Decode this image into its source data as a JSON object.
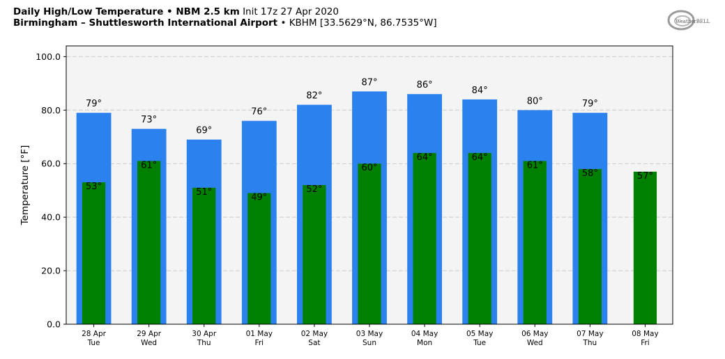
{
  "header": {
    "line1_bold": "Daily High/Low Temperature • NBM 2.5 km",
    "line1_rest": "Init 17z 27 Apr 2020",
    "line2_bold": "Birmingham – Shuttlesworth International Airport",
    "line2_rest": "• KBHM [33.5629°N, 86.7535°W]",
    "logo_text": "WeatherBELL"
  },
  "chart_data": {
    "type": "bar",
    "ylabel": "Temperature [°F]",
    "xlabel": "",
    "ylim": [
      0,
      104
    ],
    "yticks": [
      "0.0",
      "20.0",
      "40.0",
      "60.0",
      "80.0",
      "100.0"
    ],
    "grid": true,
    "categories": [
      {
        "date": "28 Apr",
        "day": "Tue"
      },
      {
        "date": "29 Apr",
        "day": "Wed"
      },
      {
        "date": "30 Apr",
        "day": "Thu"
      },
      {
        "date": "01 May",
        "day": "Fri"
      },
      {
        "date": "02 May",
        "day": "Sat"
      },
      {
        "date": "03 May",
        "day": "Sun"
      },
      {
        "date": "04 May",
        "day": "Mon"
      },
      {
        "date": "05 May",
        "day": "Tue"
      },
      {
        "date": "06 May",
        "day": "Wed"
      },
      {
        "date": "07 May",
        "day": "Thu"
      },
      {
        "date": "08 May",
        "day": "Fri"
      }
    ],
    "series": [
      {
        "color": "#2b82ee",
        "values": [
          79,
          73,
          69,
          76,
          82,
          87,
          86,
          84,
          80,
          79,
          null
        ],
        "labels": [
          "79°",
          "73°",
          "69°",
          "76°",
          "82°",
          "87°",
          "86°",
          "84°",
          "80°",
          "79°",
          null
        ]
      },
      {
        "color": "#008000",
        "values": [
          53,
          61,
          51,
          49,
          52,
          60,
          64,
          64,
          61,
          58,
          57
        ],
        "labels": [
          "53°",
          "61°",
          "51°",
          "49°",
          "52°",
          "60°",
          "64°",
          "64°",
          "61°",
          "58°",
          "57°"
        ]
      }
    ],
    "colors": {
      "plot_bg": "#f4f4f4",
      "grid": "#cccccc"
    }
  }
}
